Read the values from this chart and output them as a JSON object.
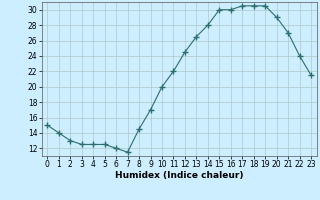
{
  "x": [
    0,
    1,
    2,
    3,
    4,
    5,
    6,
    7,
    8,
    9,
    10,
    11,
    12,
    13,
    14,
    15,
    16,
    17,
    18,
    19,
    20,
    21,
    22,
    23
  ],
  "y": [
    15,
    14,
    13,
    12.5,
    12.5,
    12.5,
    12,
    11.5,
    14.5,
    17,
    20,
    22,
    24.5,
    26.5,
    28,
    30,
    30,
    30.5,
    30.5,
    30.5,
    29,
    27,
    24,
    21.5
  ],
  "line_color": "#2d6e6e",
  "marker": "+",
  "marker_size": 4,
  "bg_color": "#cceeff",
  "grid_color_major": "#b0c8c8",
  "grid_color_minor": "#b0c8c8",
  "xlabel": "Humidex (Indice chaleur)",
  "xlim": [
    -0.5,
    23.5
  ],
  "ylim": [
    11,
    31
  ],
  "yticks": [
    12,
    14,
    16,
    18,
    20,
    22,
    24,
    26,
    28,
    30
  ],
  "xticks": [
    0,
    1,
    2,
    3,
    4,
    5,
    6,
    7,
    8,
    9,
    10,
    11,
    12,
    13,
    14,
    15,
    16,
    17,
    18,
    19,
    20,
    21,
    22,
    23
  ],
  "xlabel_fontsize": 6.5,
  "tick_fontsize": 5.5,
  "line_width": 0.8,
  "marker_color": "#2d6e6e"
}
